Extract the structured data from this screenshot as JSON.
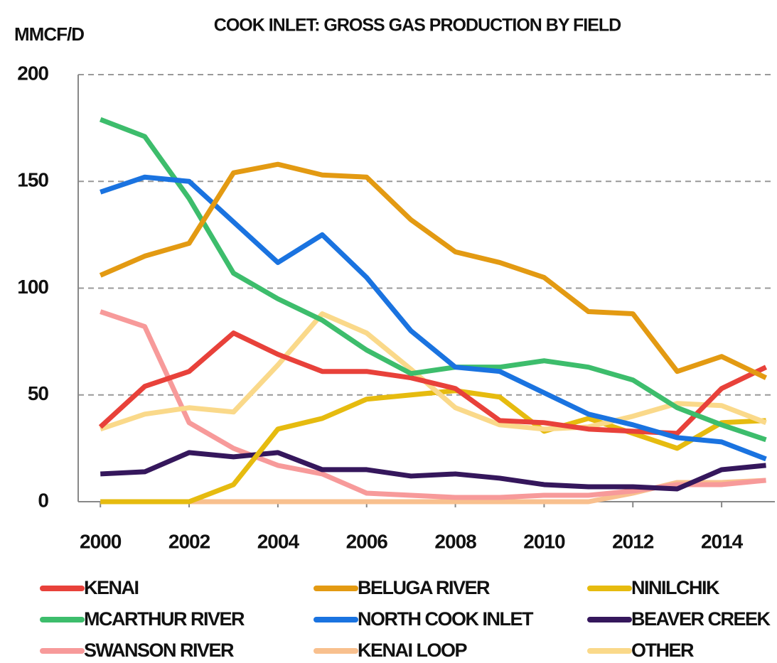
{
  "chart_data": {
    "type": "line",
    "title": "COOK INLET: GROSS GAS PRODUCTION BY FIELD",
    "y_label": "MMCF/D",
    "x": [
      2000,
      2001,
      2002,
      2003,
      2004,
      2005,
      2006,
      2007,
      2008,
      2009,
      2010,
      2011,
      2012,
      2013,
      2014,
      2015
    ],
    "xlim": [
      1999.5,
      2015.2
    ],
    "xticks": [
      2000,
      2002,
      2004,
      2006,
      2008,
      2010,
      2012,
      2014
    ],
    "ylim": [
      0,
      200
    ],
    "yticks": [
      0,
      50,
      100,
      150,
      200
    ],
    "grid": true,
    "series": [
      {
        "name": "KENAI",
        "color": "#e8413a",
        "values": [
          35,
          54,
          61,
          79,
          69,
          61,
          61,
          58,
          53,
          38,
          37,
          34,
          33,
          32,
          53,
          63
        ]
      },
      {
        "name": "BELUGA RIVER",
        "color": "#e39a12",
        "values": [
          106,
          115,
          121,
          154,
          158,
          153,
          152,
          132,
          117,
          112,
          105,
          89,
          88,
          61,
          68,
          58
        ]
      },
      {
        "name": "NINILCHIK",
        "color": "#e6bb0f",
        "values": [
          0,
          0,
          0,
          8,
          34,
          39,
          48,
          50,
          52,
          49,
          33,
          39,
          32,
          25,
          37,
          38
        ]
      },
      {
        "name": "MCARTHUR RIVER",
        "color": "#3dbd6c",
        "values": [
          179,
          171,
          142,
          107,
          95,
          85,
          71,
          60,
          63,
          63,
          66,
          63,
          57,
          44,
          36,
          29
        ]
      },
      {
        "name": "NORTH COOK INLET",
        "color": "#1a73e0",
        "values": [
          145,
          152,
          150,
          131,
          112,
          125,
          105,
          80,
          63,
          61,
          51,
          41,
          36,
          30,
          28,
          20
        ]
      },
      {
        "name": "BEAVER CREEK",
        "color": "#35175c",
        "values": [
          13,
          14,
          23,
          21,
          23,
          15,
          15,
          12,
          13,
          11,
          8,
          7,
          7,
          6,
          15,
          17
        ]
      },
      {
        "name": "SWANSON RIVER",
        "color": "#f79a9a",
        "values": [
          89,
          82,
          37,
          25,
          17,
          13,
          4,
          3,
          2,
          2,
          3,
          3,
          5,
          8,
          8,
          10
        ]
      },
      {
        "name": "KENAI LOOP",
        "color": "#f8c08e",
        "values": [
          0,
          0,
          0,
          0,
          0,
          0,
          0,
          0,
          0,
          0,
          0,
          0,
          4,
          9,
          9,
          10
        ]
      },
      {
        "name": "OTHER",
        "color": "#fad98a",
        "values": [
          34,
          41,
          44,
          42,
          64,
          88,
          79,
          62,
          44,
          36,
          34,
          35,
          40,
          46,
          45,
          37
        ]
      }
    ]
  }
}
